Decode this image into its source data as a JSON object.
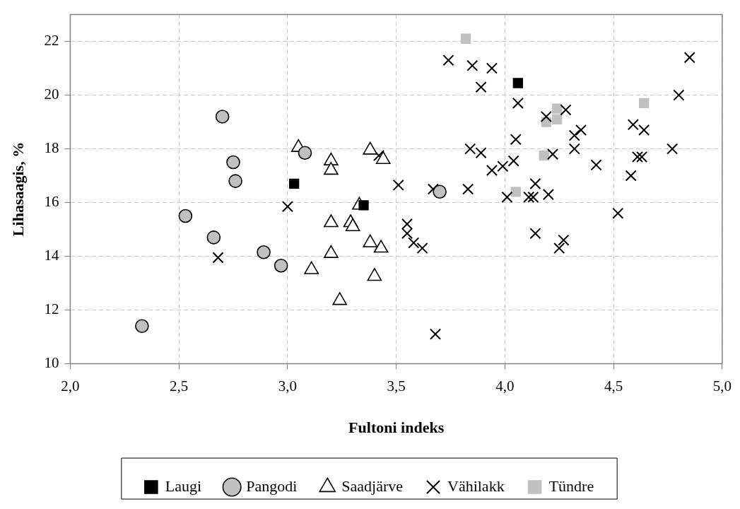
{
  "chart_data": {
    "type": "scatter",
    "xlabel": "Fultoni indeks",
    "ylabel": "Lihasaagis, %",
    "xlim": [
      2.0,
      5.0
    ],
    "xticks": [
      {
        "value": 2,
        "label": "2,0"
      },
      {
        "value": 2.5,
        "label": "2,5"
      },
      {
        "value": 3,
        "label": "3,0"
      },
      {
        "value": 3.5,
        "label": "3,5"
      },
      {
        "value": 4,
        "label": "4,0"
      },
      {
        "value": 4.5,
        "label": "4,5"
      },
      {
        "value": 5,
        "label": "5,0"
      }
    ],
    "ylim": [
      10,
      23
    ],
    "yticks": [
      10,
      12,
      14,
      16,
      18,
      20,
      22
    ],
    "grid": true,
    "legend": "bottom",
    "series": [
      {
        "name": "Laugi",
        "color": "#000000",
        "marker": "square",
        "x": [
          3.03,
          3.35,
          4.06
        ],
        "values": [
          16.7,
          15.9,
          20.45
        ]
      },
      {
        "name": "Pangodi",
        "color": "#c0c0c0",
        "marker": "circle",
        "x": [
          2.33,
          2.53,
          2.66,
          2.7,
          2.75,
          2.76,
          2.89,
          2.97,
          3.08,
          3.7
        ],
        "values": [
          11.4,
          15.5,
          14.7,
          19.2,
          17.5,
          16.8,
          14.15,
          13.65,
          17.85,
          16.4
        ]
      },
      {
        "name": "Saadjärve",
        "color": "#ffffff",
        "marker": "triangle",
        "x": [
          3.05,
          3.11,
          3.2,
          3.2,
          3.2,
          3.2,
          3.24,
          3.29,
          3.3,
          3.33,
          3.38,
          3.38,
          3.4,
          3.43,
          3.44
        ],
        "values": [
          18.05,
          13.5,
          17.55,
          17.2,
          15.25,
          14.1,
          12.35,
          15.25,
          15.1,
          15.9,
          17.95,
          14.5,
          13.25,
          14.3,
          17.6
        ]
      },
      {
        "name": "Vähilakk",
        "color": "#000000",
        "marker": "cross",
        "x": [
          2.68,
          3.0,
          3.42,
          3.51,
          3.55,
          3.55,
          3.58,
          3.62,
          3.67,
          3.68,
          3.74,
          3.83,
          3.84,
          3.85,
          3.89,
          3.89,
          3.94,
          3.94,
          3.99,
          4.01,
          4.04,
          4.05,
          4.06,
          4.11,
          4.13,
          4.14,
          4.14,
          4.19,
          4.2,
          4.22,
          4.25,
          4.27,
          4.28,
          4.32,
          4.32,
          4.35,
          4.42,
          4.52,
          4.58,
          4.59,
          4.61,
          4.63,
          4.64,
          4.77,
          4.8,
          4.85
        ],
        "values": [
          13.95,
          15.85,
          17.75,
          16.65,
          15.2,
          14.85,
          14.5,
          14.3,
          16.5,
          11.1,
          21.3,
          16.5,
          18.0,
          21.1,
          20.3,
          17.85,
          21.0,
          17.2,
          17.35,
          16.2,
          17.55,
          18.35,
          19.7,
          16.2,
          16.2,
          16.7,
          14.85,
          19.2,
          16.3,
          17.8,
          14.3,
          14.6,
          19.45,
          18.0,
          18.5,
          18.7,
          17.4,
          15.6,
          17.0,
          18.9,
          17.7,
          17.7,
          18.7,
          18.0,
          20.0,
          21.4
        ]
      },
      {
        "name": "Tündre",
        "color": "#c0c0c0",
        "marker": "square",
        "x": [
          3.82,
          4.05,
          4.18,
          4.19,
          4.24,
          4.24,
          4.64
        ],
        "values": [
          22.1,
          16.4,
          17.75,
          19.0,
          19.1,
          19.5,
          19.7
        ]
      }
    ]
  }
}
